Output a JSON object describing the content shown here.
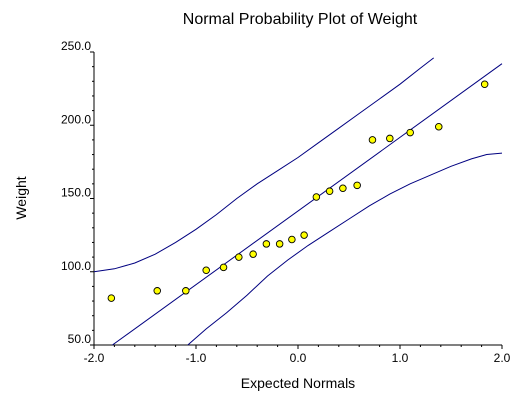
{
  "chart_data": {
    "type": "scatter",
    "title": "Normal Probability Plot of Weight",
    "xlabel": "Expected Normals",
    "ylabel": "Weight",
    "xlim": [
      -2.0,
      2.0
    ],
    "ylim": [
      50.0,
      250.0
    ],
    "x_ticks": [
      "-2.0",
      "-1.0",
      "0.0",
      "1.0",
      "2.0"
    ],
    "y_ticks": [
      "50.0",
      "100.0",
      "150.0",
      "200.0",
      "250.0"
    ],
    "grid": false,
    "legend": "none",
    "colors": {
      "point_fill": "#ffff00",
      "point_stroke": "#000000",
      "line": "#000080",
      "axis": "#000000"
    },
    "points": [
      {
        "x": -1.83,
        "y": 82
      },
      {
        "x": -1.38,
        "y": 87
      },
      {
        "x": -1.1,
        "y": 87
      },
      {
        "x": -0.9,
        "y": 101
      },
      {
        "x": -0.73,
        "y": 103
      },
      {
        "x": -0.58,
        "y": 110
      },
      {
        "x": -0.44,
        "y": 112
      },
      {
        "x": -0.31,
        "y": 119
      },
      {
        "x": -0.18,
        "y": 119
      },
      {
        "x": -0.06,
        "y": 122
      },
      {
        "x": 0.06,
        "y": 125
      },
      {
        "x": 0.18,
        "y": 151
      },
      {
        "x": 0.31,
        "y": 155
      },
      {
        "x": 0.44,
        "y": 157
      },
      {
        "x": 0.58,
        "y": 159
      },
      {
        "x": 0.73,
        "y": 190
      },
      {
        "x": 0.9,
        "y": 191
      },
      {
        "x": 1.1,
        "y": 195
      },
      {
        "x": 1.38,
        "y": 199
      },
      {
        "x": 1.83,
        "y": 228
      }
    ],
    "reference_line": [
      {
        "x": -1.82,
        "y": 50
      },
      {
        "x": 2.0,
        "y": 242
      }
    ],
    "upper_band": [
      {
        "x": -2.0,
        "y": 100
      },
      {
        "x": -1.8,
        "y": 102
      },
      {
        "x": -1.6,
        "y": 106
      },
      {
        "x": -1.4,
        "y": 112
      },
      {
        "x": -1.2,
        "y": 120
      },
      {
        "x": -1.0,
        "y": 129
      },
      {
        "x": -0.8,
        "y": 139
      },
      {
        "x": -0.6,
        "y": 150
      },
      {
        "x": -0.4,
        "y": 160
      },
      {
        "x": -0.2,
        "y": 169
      },
      {
        "x": 0.0,
        "y": 178
      },
      {
        "x": 0.2,
        "y": 188
      },
      {
        "x": 0.4,
        "y": 198
      },
      {
        "x": 0.6,
        "y": 208
      },
      {
        "x": 0.8,
        "y": 218
      },
      {
        "x": 1.0,
        "y": 228
      },
      {
        "x": 1.2,
        "y": 239
      },
      {
        "x": 1.33,
        "y": 246
      }
    ],
    "lower_band": [
      {
        "x": -1.08,
        "y": 50
      },
      {
        "x": -0.9,
        "y": 61
      },
      {
        "x": -0.7,
        "y": 72
      },
      {
        "x": -0.5,
        "y": 84
      },
      {
        "x": -0.3,
        "y": 97
      },
      {
        "x": -0.1,
        "y": 108
      },
      {
        "x": 0.1,
        "y": 118
      },
      {
        "x": 0.3,
        "y": 127
      },
      {
        "x": 0.5,
        "y": 136
      },
      {
        "x": 0.7,
        "y": 145
      },
      {
        "x": 0.9,
        "y": 153
      },
      {
        "x": 1.1,
        "y": 160
      },
      {
        "x": 1.3,
        "y": 166
      },
      {
        "x": 1.5,
        "y": 172
      },
      {
        "x": 1.7,
        "y": 177
      },
      {
        "x": 1.85,
        "y": 180
      },
      {
        "x": 2.0,
        "y": 181
      }
    ]
  }
}
